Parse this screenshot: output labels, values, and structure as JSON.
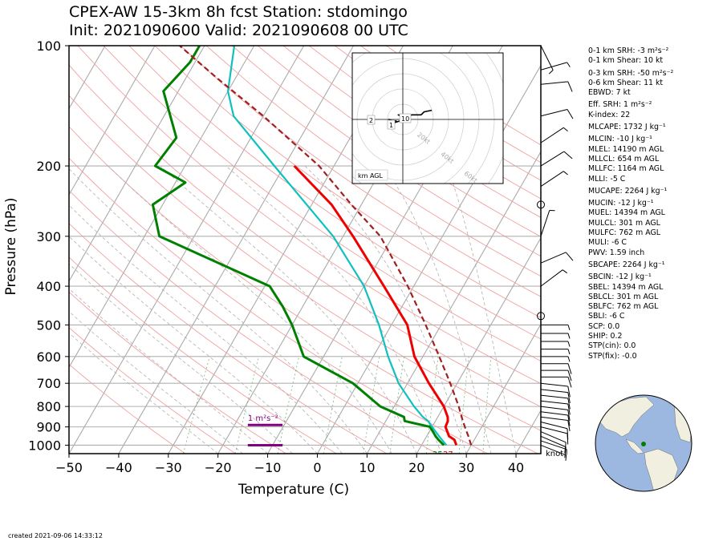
{
  "title": {
    "line1": "CPEX-AW 15-3km  8h fcst  Station: stdomingo",
    "line2": "Init: 2021090600  Valid: 2021090608 00 UTC"
  },
  "axes": {
    "xlabel": "Temperature (C)",
    "ylabel": "Pressure (hPa)",
    "x_ticks": [
      "−50",
      "−40",
      "−30",
      "−20",
      "−10",
      "0",
      "10",
      "20",
      "30",
      "40"
    ],
    "p_ticks": [
      "100",
      "200",
      "300",
      "400",
      "500",
      "600",
      "700",
      "800",
      "900",
      "1000"
    ],
    "xlim": [
      -50,
      45
    ],
    "plim": [
      1050,
      100
    ],
    "yscale": "log"
  },
  "hodograph": {
    "label": "km AGL",
    "ring_labels": [
      "20kt",
      "40kt",
      "60kt",
      "80kt"
    ],
    "height_labels": [
      "2",
      "1",
      "10"
    ]
  },
  "annotations": {
    "srh_bar_label": "1 m²s⁻²",
    "barb_units": "knot",
    "surface_dewpoint": "25",
    "surface_temp": "27",
    "surface_mid": "7"
  },
  "stats": [
    "0-1 km SRH: -3 m²s⁻²",
    "0-1 km Shear: 10 kt",
    "0-3 km SRH: -50 m²s⁻²",
    "0-6 km Shear: 11 kt",
    "EBWD: 7 kt",
    "Eff. SRH: 1 m²s⁻²",
    "K-index: 22",
    "MLCAPE: 1732 J kg⁻¹",
    "MLCIN: -10 J kg⁻¹",
    "MLEL: 14190 m AGL",
    "MLLCL: 654 m AGL",
    "MLLFC: 1164 m AGL",
    "MLLI: -5 C",
    "MUCAPE: 2264 J kg⁻¹",
    "MUCIN: -12 J kg⁻¹",
    "MUEL: 14394 m AGL",
    "MULCL: 301 m AGL",
    "MULFC: 762 m AGL",
    "MULI: -6 C",
    "PWV: 1.59 inch",
    "SBCAPE: 2264 J kg⁻¹",
    "SBCIN: -12 J kg⁻¹",
    "SBEL: 14394 m AGL",
    "SBLCL: 301 m AGL",
    "SBLFC: 762 m AGL",
    "SBLI: -6 C",
    "SCP: 0.0",
    "SHIP: 0.2",
    "STP(cin): 0.0",
    "STP(fix): -0.0"
  ],
  "created": "created 2021-09-06 14:33:12",
  "colors": {
    "temperature": "#ee0000",
    "dewpoint": "#008000",
    "wetbulb": "#10c0c0",
    "parcel": "#a02020",
    "land": "#f0efe0",
    "ocean": "#9cb8e0"
  },
  "chart_data": {
    "type": "skew-t",
    "pressure_axis": "log",
    "series": [
      {
        "name": "temperature",
        "points": [
          [
            1000,
            27
          ],
          [
            970,
            26
          ],
          [
            950,
            24.5
          ],
          [
            900,
            22.7
          ],
          [
            870,
            22.5
          ],
          [
            850,
            22
          ],
          [
            800,
            20
          ],
          [
            700,
            14.3
          ],
          [
            600,
            8.3
          ],
          [
            500,
            3.2
          ],
          [
            400,
            -6.0
          ],
          [
            300,
            -18
          ],
          [
            250,
            -26
          ],
          [
            200,
            -38
          ]
        ]
      },
      {
        "name": "dewpoint",
        "points": [
          [
            1000,
            24.5
          ],
          [
            970,
            22.8
          ],
          [
            950,
            21.8
          ],
          [
            900,
            19.6
          ],
          [
            870,
            13.8
          ],
          [
            850,
            13.2
          ],
          [
            800,
            7.2
          ],
          [
            700,
            -1
          ],
          [
            600,
            -14
          ],
          [
            500,
            -20
          ],
          [
            450,
            -24
          ],
          [
            400,
            -29
          ],
          [
            300,
            -57
          ],
          [
            250,
            -62
          ],
          [
            220,
            -58
          ],
          [
            200,
            -66
          ],
          [
            170,
            -65
          ],
          [
            130,
            -73
          ],
          [
            110,
            -71
          ],
          [
            100,
            -71
          ]
        ]
      },
      {
        "name": "wetbulb",
        "points": [
          [
            1000,
            25
          ],
          [
            950,
            22.5
          ],
          [
            900,
            20
          ],
          [
            870,
            18.5
          ],
          [
            850,
            17
          ],
          [
            800,
            14
          ],
          [
            700,
            8.2
          ],
          [
            600,
            3
          ],
          [
            500,
            -2.5
          ],
          [
            400,
            -10
          ],
          [
            300,
            -22
          ],
          [
            250,
            -31
          ],
          [
            200,
            -42
          ],
          [
            150,
            -56
          ],
          [
            130,
            -60
          ],
          [
            100,
            -64
          ]
        ]
      },
      {
        "name": "parcel",
        "points": [
          [
            1000,
            30
          ],
          [
            950,
            28.4
          ],
          [
            900,
            26.6
          ],
          [
            850,
            24.8
          ],
          [
            800,
            23
          ],
          [
            700,
            18.6
          ],
          [
            600,
            13.3
          ],
          [
            500,
            6.9
          ],
          [
            400,
            -1.2
          ],
          [
            300,
            -12.5
          ],
          [
            250,
            -22
          ],
          [
            200,
            -33
          ],
          [
            150,
            -50
          ],
          [
            120,
            -64
          ],
          [
            100,
            -75
          ]
        ]
      }
    ],
    "hodograph": {
      "rings_kt": [
        10,
        20,
        30,
        40,
        50,
        60,
        70,
        80
      ],
      "hodo_range_kt": 50,
      "points_uv_kt": [
        [
          -4,
          -1
        ],
        [
          -7,
          -1
        ],
        [
          -9,
          0
        ],
        [
          -5,
          -2
        ],
        [
          -2,
          -1
        ],
        [
          1,
          1
        ],
        [
          3,
          1
        ],
        [
          -1,
          2
        ],
        [
          -3,
          3
        ],
        [
          2,
          2
        ],
        [
          6,
          3
        ],
        [
          12,
          3
        ],
        [
          14,
          5
        ],
        [
          19,
          6
        ]
      ]
    },
    "barbs_kt": [
      {
        "p": 1000,
        "u": -5,
        "v": 2
      },
      {
        "p": 975,
        "u": -6,
        "v": 2
      },
      {
        "p": 950,
        "u": -7,
        "v": 3
      },
      {
        "p": 925,
        "u": -7,
        "v": 3
      },
      {
        "p": 900,
        "u": -8,
        "v": 2
      },
      {
        "p": 875,
        "u": -8,
        "v": 2
      },
      {
        "p": 850,
        "u": -8,
        "v": 1
      },
      {
        "p": 825,
        "u": -8,
        "v": 1
      },
      {
        "p": 800,
        "u": -8,
        "v": 1
      },
      {
        "p": 775,
        "u": -9,
        "v": 1
      },
      {
        "p": 750,
        "u": -9,
        "v": 1
      },
      {
        "p": 725,
        "u": -9,
        "v": 1
      },
      {
        "p": 700,
        "u": -9,
        "v": 1
      },
      {
        "p": 675,
        "u": -9,
        "v": 0
      },
      {
        "p": 650,
        "u": -8,
        "v": 0
      },
      {
        "p": 625,
        "u": -8,
        "v": 0
      },
      {
        "p": 600,
        "u": -7,
        "v": 0
      },
      {
        "p": 575,
        "u": -7,
        "v": 0
      },
      {
        "p": 550,
        "u": -6,
        "v": 0
      },
      {
        "p": 525,
        "u": -5,
        "v": 0
      },
      {
        "p": 500,
        "u": -3,
        "v": 0
      },
      {
        "p": 475,
        "u": -2,
        "v": 0
      },
      {
        "p": 400,
        "u": -4,
        "v": -3
      },
      {
        "p": 350,
        "u": -7,
        "v": -3
      },
      {
        "p": 300,
        "u": -2,
        "v": -6
      },
      {
        "p": 250,
        "u": 0,
        "v": 0
      },
      {
        "p": 225,
        "u": -6,
        "v": -4
      },
      {
        "p": 200,
        "u": -8,
        "v": -5
      },
      {
        "p": 175,
        "u": -6,
        "v": -4
      },
      {
        "p": 150,
        "u": -8,
        "v": -2
      },
      {
        "p": 125,
        "u": -10,
        "v": -1
      },
      {
        "p": 115,
        "u": -7,
        "v": -2
      },
      {
        "p": 100,
        "u": -3,
        "v": 6
      }
    ],
    "srh_bars": [
      [
        -14,
        -7
      ],
      [
        -14,
        -7
      ]
    ],
    "station_latlon": [
      18.5,
      -69.9
    ]
  }
}
